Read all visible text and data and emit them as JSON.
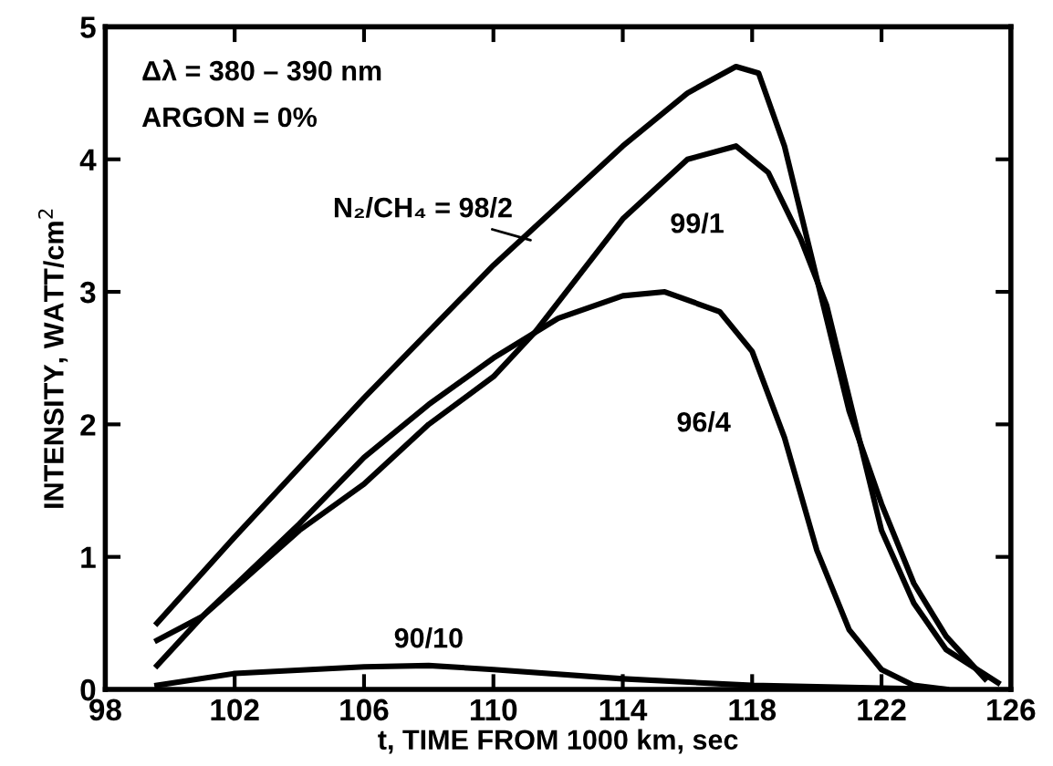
{
  "chart_data": {
    "type": "line",
    "xlabel": "t, TIME FROM 1000 km, sec",
    "ylabel": "INTENSITY, WATT/cm$^{2}$",
    "x": [
      99.6,
      102,
      106,
      110,
      114,
      116,
      117.5,
      118.2,
      119,
      120,
      121,
      122,
      123,
      124,
      125.2
    ],
    "series": [
      {
        "name": "N₂/CH₄ = 98/2",
        "color": "#000000",
        "values": [
          0.5,
          1.15,
          2.2,
          3.2,
          4.1,
          4.5,
          4.7,
          4.65,
          4.1,
          3.1,
          2.1,
          1.4,
          0.8,
          0.4,
          0.08
        ]
      },
      {
        "name": "99/1",
        "color": "#000000",
        "x": [
          99.6,
          101,
          104,
          106,
          108,
          110,
          111.3,
          114,
          116,
          117.5,
          118.5,
          119.5,
          120.3,
          121,
          122,
          123,
          124,
          125.6
        ],
        "values": [
          0.18,
          0.55,
          1.2,
          1.55,
          2.0,
          2.36,
          2.7,
          3.55,
          4.0,
          4.1,
          3.9,
          3.4,
          2.9,
          2.2,
          1.2,
          0.65,
          0.3,
          0.05
        ]
      },
      {
        "name": "96/4",
        "color": "#000000",
        "x": [
          99.6,
          101,
          104,
          106,
          108,
          110,
          112,
          114,
          115.3,
          117,
          118,
          119,
          120,
          121,
          122,
          123,
          124
        ],
        "values": [
          0.37,
          0.55,
          1.25,
          1.75,
          2.15,
          2.5,
          2.8,
          2.97,
          3.0,
          2.85,
          2.55,
          1.9,
          1.05,
          0.45,
          0.15,
          0.03,
          0.0
        ]
      },
      {
        "name": "90/10",
        "color": "#000000",
        "x": [
          99.6,
          102,
          106,
          108,
          110,
          114,
          118,
          122,
          124
        ],
        "values": [
          0.03,
          0.12,
          0.17,
          0.18,
          0.15,
          0.08,
          0.03,
          0.01,
          0.0
        ]
      }
    ],
    "annotations": [
      "Δλ = 380 – 390 nm",
      "ARGON = 0%"
    ],
    "xlim": [
      98,
      126
    ],
    "xticks": [
      98,
      102,
      106,
      110,
      114,
      118,
      122,
      126
    ],
    "ylim": [
      0,
      5
    ],
    "yticks": [
      0,
      1,
      2,
      3,
      4,
      5
    ],
    "grid": false,
    "legend": false,
    "marker": "none",
    "line_style": "solid"
  }
}
